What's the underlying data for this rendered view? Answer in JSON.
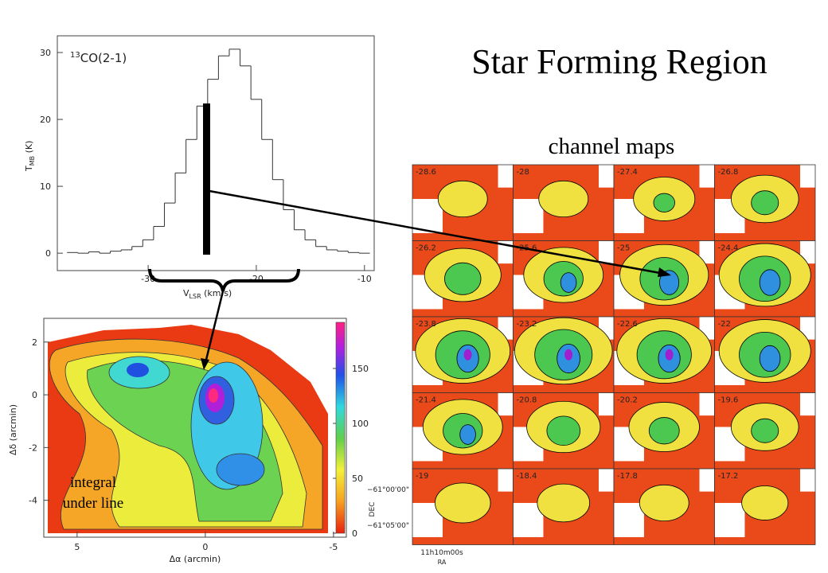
{
  "title": "Star Forming Region",
  "chart_data": {
    "type": "line",
    "annotation": {
      "sup": "13",
      "main": "CO(2-1)"
    },
    "xlabel": {
      "main": "V",
      "sub": "LSR",
      "unit": " (km/s)"
    },
    "ylabel": {
      "main": "T",
      "sub": "MB",
      "unit": " (K)"
    },
    "x": [
      -37,
      -36,
      -35,
      -34,
      -33,
      -32,
      -31,
      -30,
      -29,
      -28,
      -27,
      -26,
      -25,
      -24,
      -23,
      -22,
      -21,
      -20,
      -19,
      -18,
      -17,
      -16,
      -15,
      -14,
      -13,
      -12,
      -11,
      -10
    ],
    "values": [
      0.1,
      0,
      0.2,
      0,
      0.3,
      0.5,
      1,
      2,
      4,
      7.5,
      12,
      17,
      22,
      26,
      29.5,
      30.5,
      28,
      23,
      17,
      11,
      6.5,
      3.5,
      2,
      1,
      0.5,
      0.3,
      0.1,
      0
    ],
    "color": "#333333",
    "xlim": [
      -38.4,
      -9.1
    ],
    "ylim": [
      -2.6,
      32.5
    ],
    "xticks": [
      -30,
      -20,
      -10
    ],
    "yticks": [
      0,
      10,
      20,
      30
    ]
  },
  "map": {
    "xlabel": "Δα (arcmin)",
    "ylabel": "Δδ (arcmin)",
    "xlim": [
      6.3,
      -5.5
    ],
    "ylim": [
      -5.4,
      2.9
    ],
    "xticks": [
      5,
      0,
      -5
    ],
    "yticks": [
      2,
      0,
      -2,
      -4
    ],
    "colorbar_lim": [
      0,
      192
    ],
    "colorbar_ticks": [
      0,
      50,
      100,
      150
    ],
    "note": [
      "integral",
      "under line"
    ]
  },
  "channel_maps": {
    "title": "channel maps",
    "labels": [
      "-28.6",
      "-28",
      "-27.4",
      "-26.8",
      "-26.2",
      "-25.6",
      "-25",
      "-24.4",
      "-23.8",
      "-23.2",
      "-22.6",
      "-22",
      "-21.4",
      "-20.8",
      "-20.2",
      "-19.6",
      "-19",
      "-18.4",
      "-17.8",
      "-17.2"
    ],
    "dec_ticks": [
      "−61°00'00\"",
      "−61°05'00\""
    ],
    "dec_label": "DEC",
    "ra_tick": "11h10m00s",
    "ra_label": "RA"
  }
}
